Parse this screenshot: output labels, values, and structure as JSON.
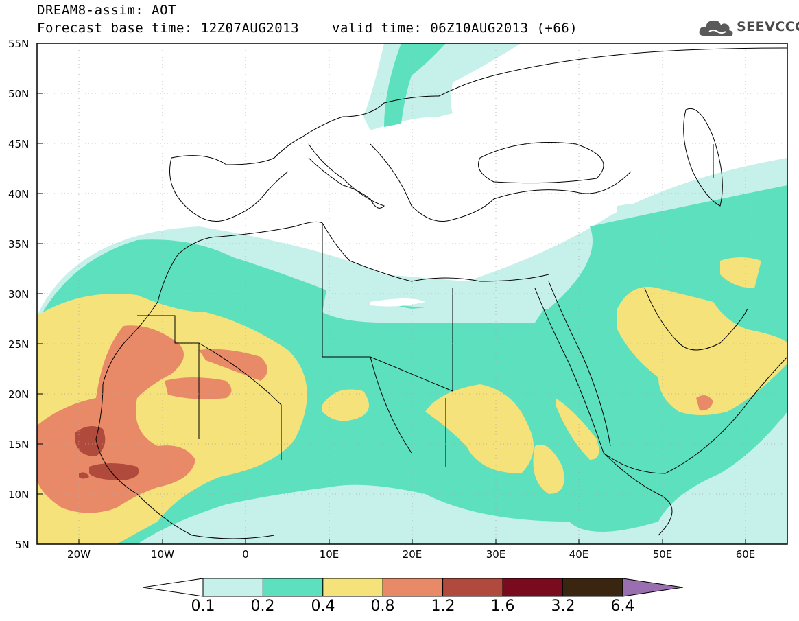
{
  "header": {
    "line1": "DREAM8-assim: AOT",
    "line2_base": "Forecast base time: 12Z07AUG2013",
    "line2_valid": "valid time: 06Z10AUG2013 (+66)"
  },
  "logo": {
    "text": "SEEVCCC",
    "icon": "cloud-icon"
  },
  "map": {
    "projection": "lat-lon",
    "lon_range": [
      -25,
      65
    ],
    "lat_range": [
      5,
      55
    ],
    "lat_labels": [
      "55N",
      "50N",
      "45N",
      "40N",
      "35N",
      "30N",
      "25N",
      "20N",
      "15N",
      "10N",
      "5N"
    ],
    "lon_labels": [
      "20W",
      "10W",
      "0",
      "10E",
      "20E",
      "30E",
      "40E",
      "50E",
      "60E"
    ]
  },
  "colorbar": {
    "labels": [
      "0.1",
      "0.2",
      "0.4",
      "0.8",
      "1.2",
      "1.6",
      "3.2",
      "6.4"
    ],
    "colors": [
      "#c6f0ea",
      "#5ce0be",
      "#f5e27a",
      "#e88a68",
      "#b04a3c",
      "#7a0a1e",
      "#3a2510",
      "#9a6fb0"
    ]
  }
}
